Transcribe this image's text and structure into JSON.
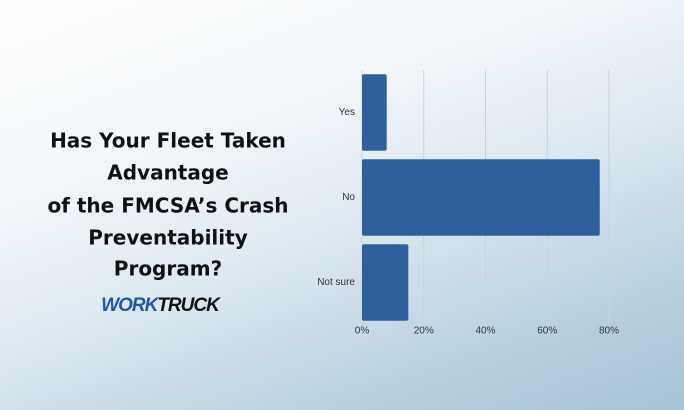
{
  "chart_data": {
    "type": "barh",
    "title_lines": [
      "Has Your Fleet Taken",
      "Advantage",
      "of the FMCSA’s Crash",
      "Preventability",
      "Program?"
    ],
    "logo": [
      "WORK",
      "TRUCK"
    ],
    "categories": [
      "Yes",
      "No",
      "Not sure"
    ],
    "values": [
      8,
      77,
      15
    ],
    "color": "#2f5f9d",
    "xlim": [
      0,
      80
    ],
    "xticks": [
      {
        "value": 0,
        "label": "0%"
      },
      {
        "value": 20,
        "label": "20%"
      },
      {
        "value": 40,
        "label": "40%"
      },
      {
        "value": 60,
        "label": "60%"
      },
      {
        "value": 80,
        "label": "80%"
      }
    ],
    "grid": true
  }
}
